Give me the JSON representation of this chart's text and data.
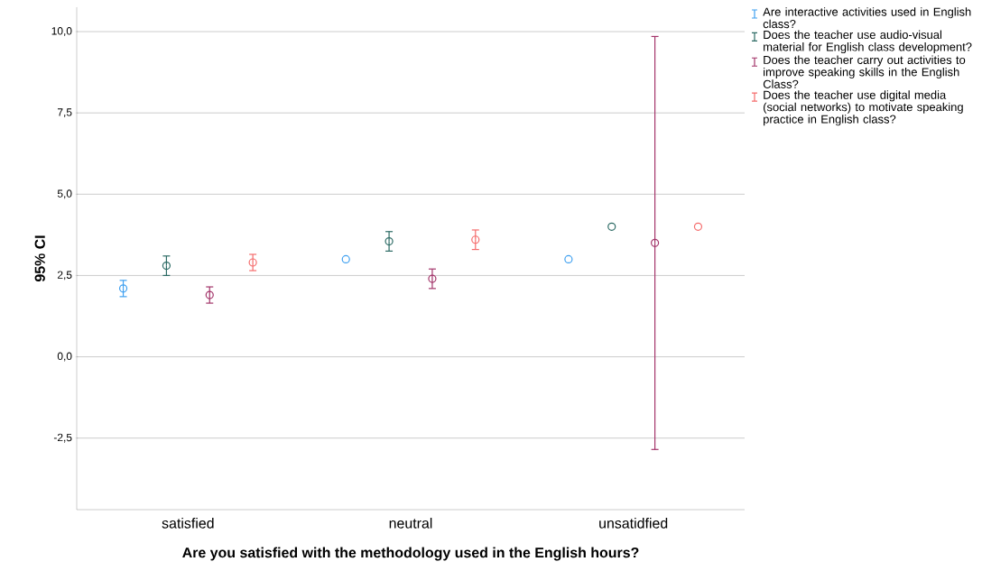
{
  "chart_data": {
    "type": "scatter",
    "xlabel": "Are you satisfied with the methodology used in the English hours?",
    "ylabel": "95% CI",
    "categories": [
      "satisfied",
      "neutral",
      "unsatidfied"
    ],
    "series": [
      {
        "name": "Are interactive activities used in English class?",
        "color": "#3fa0f0",
        "values": [
          2.1,
          3.0,
          3.0
        ],
        "errors": [
          0.25,
          null,
          null
        ]
      },
      {
        "name": "Does the teacher use audio-visual material for English class development?",
        "color": "#2d6b65",
        "values": [
          2.8,
          3.55,
          4.0
        ],
        "errors": [
          0.3,
          0.3,
          null
        ]
      },
      {
        "name": "Does the teacher carry out activities to improve speaking skills in the English Class?",
        "color": "#a3356a",
        "values": [
          1.9,
          2.4,
          3.5
        ],
        "errors": [
          0.25,
          0.3,
          6.35
        ]
      },
      {
        "name": "Does the teacher use digital media (social networks) to motivate speaking practice in English class?",
        "color": "#f56c6c",
        "values": [
          2.9,
          3.6,
          4.0
        ],
        "errors": [
          0.25,
          0.3,
          null
        ]
      }
    ],
    "ylim": [
      -4.7,
      10.75
    ],
    "yticks": [
      {
        "value": -2.5,
        "label": "-2,5"
      },
      {
        "value": 0,
        "label": "0,0"
      },
      {
        "value": 2.5,
        "label": "2,5"
      },
      {
        "value": 5,
        "label": "5,0"
      },
      {
        "value": 7.5,
        "label": "7,5"
      },
      {
        "value": 10,
        "label": "10,0"
      }
    ],
    "grid": "y",
    "legend": "top right",
    "marker": "circle"
  }
}
